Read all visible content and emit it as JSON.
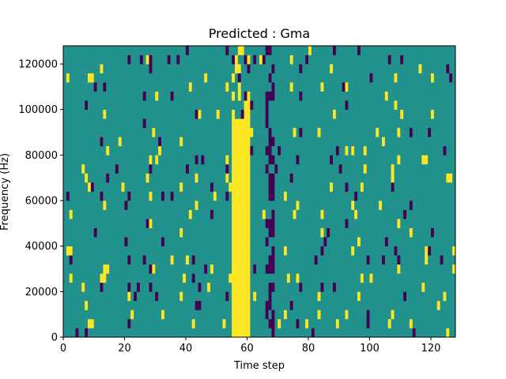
{
  "chart_data": {
    "type": "heatmap",
    "title": "Predicted : Gma",
    "xlabel": "Time step",
    "ylabel": "Frequency (Hz)",
    "xlim": [
      0,
      128
    ],
    "ylim": [
      0,
      128000
    ],
    "xticks": [
      0,
      20,
      40,
      60,
      80,
      100,
      120
    ],
    "yticks": [
      0,
      20000,
      40000,
      60000,
      80000,
      100000,
      120000
    ],
    "xtick_labels": [
      "0",
      "20",
      "40",
      "60",
      "80",
      "100",
      "120"
    ],
    "ytick_labels": [
      "0",
      "20000",
      "40000",
      "60000",
      "80000",
      "100000",
      "120000"
    ],
    "grid": false,
    "colormap": "viridis",
    "n_time_steps": 128,
    "n_freq_bins": 32,
    "colors": {
      "low": "#440154",
      "mid": "#21918c",
      "high": "#fde725"
    },
    "bright_band": {
      "time_start": 55,
      "time_end": 60,
      "level": "high"
    },
    "dark_column": {
      "time_start": 66,
      "time_end": 68,
      "level": "low"
    },
    "noise": {
      "high_density": 0.035,
      "low_density": 0.03,
      "seed": 7
    }
  }
}
